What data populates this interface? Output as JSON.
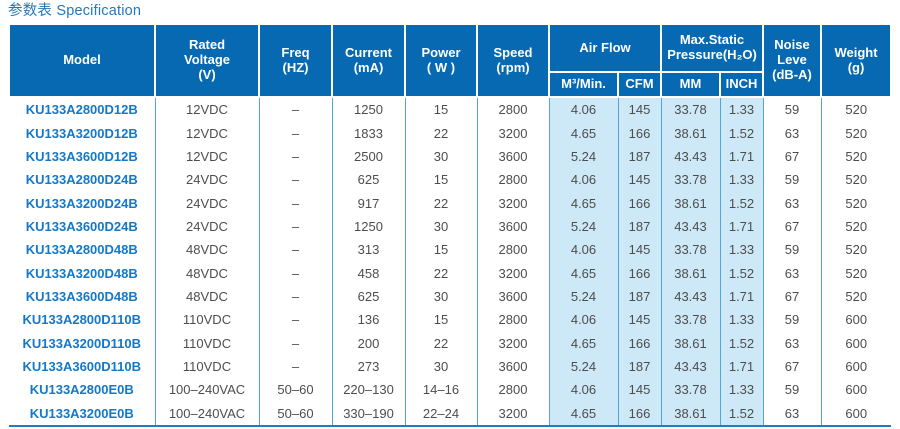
{
  "title": "参数表 Specification",
  "table": {
    "headers": {
      "model": "Model",
      "rated_voltage": "Rated\nVoltage\n(V)",
      "freq": "Freq\n(HZ)",
      "current": "Current\n(mA)",
      "power": "Power\n( W )",
      "speed": "Speed\n(rpm)",
      "air_flow": "Air Flow",
      "max_static_pressure": "Max.Static\nPressure(H₂O)",
      "noise": "Noise\nLeve\n(dB-A)",
      "weight": "Weight\n(g)",
      "m3_min": "M³/Min.",
      "cfm": "CFM",
      "mm": "MM",
      "inch": "INCH"
    },
    "column_keys": [
      "model",
      "rated-voltage",
      "freq",
      "current",
      "power",
      "speed",
      "airflow-m3min",
      "airflow-cfm",
      "pressure-mm",
      "pressure-inch",
      "noise",
      "weight"
    ],
    "highlight_columns": [
      6,
      7,
      8,
      9
    ],
    "colors": {
      "header_bg": "#0769b1",
      "highlight_bg": "#cde8f7",
      "grid_line": "#51a5d7",
      "bottom_rule": "#1f7dc2",
      "model_text": "#1478c8",
      "body_text": "#4d4d4d",
      "title_text": "#2377bb"
    },
    "rows": [
      [
        "KU133A2800D12B",
        "12VDC",
        "–",
        "1250",
        "15",
        "2800",
        "4.06",
        "145",
        "33.78",
        "1.33",
        "59",
        "520"
      ],
      [
        "KU133A3200D12B",
        "12VDC",
        "–",
        "1833",
        "22",
        "3200",
        "4.65",
        "166",
        "38.61",
        "1.52",
        "63",
        "520"
      ],
      [
        "KU133A3600D12B",
        "12VDC",
        "–",
        "2500",
        "30",
        "3600",
        "5.24",
        "187",
        "43.43",
        "1.71",
        "67",
        "520"
      ],
      [
        "KU133A2800D24B",
        "24VDC",
        "–",
        "625",
        "15",
        "2800",
        "4.06",
        "145",
        "33.78",
        "1.33",
        "59",
        "520"
      ],
      [
        "KU133A3200D24B",
        "24VDC",
        "–",
        "917",
        "22",
        "3200",
        "4.65",
        "166",
        "38.61",
        "1.52",
        "63",
        "520"
      ],
      [
        "KU133A3600D24B",
        "24VDC",
        "–",
        "1250",
        "30",
        "3600",
        "5.24",
        "187",
        "43.43",
        "1.71",
        "67",
        "520"
      ],
      [
        "KU133A2800D48B",
        "48VDC",
        "–",
        "313",
        "15",
        "2800",
        "4.06",
        "145",
        "33.78",
        "1.33",
        "59",
        "520"
      ],
      [
        "KU133A3200D48B",
        "48VDC",
        "–",
        "458",
        "22",
        "3200",
        "4.65",
        "166",
        "38.61",
        "1.52",
        "63",
        "520"
      ],
      [
        "KU133A3600D48B",
        "48VDC",
        "–",
        "625",
        "30",
        "3600",
        "5.24",
        "187",
        "43.43",
        "1.71",
        "67",
        "520"
      ],
      [
        "KU133A2800D110B",
        "110VDC",
        "–",
        "136",
        "15",
        "2800",
        "4.06",
        "145",
        "33.78",
        "1.33",
        "59",
        "600"
      ],
      [
        "KU133A3200D110B",
        "110VDC",
        "–",
        "200",
        "22",
        "3200",
        "4.65",
        "166",
        "38.61",
        "1.52",
        "63",
        "600"
      ],
      [
        "KU133A3600D110B",
        "110VDC",
        "–",
        "273",
        "30",
        "3600",
        "5.24",
        "187",
        "43.43",
        "1.71",
        "67",
        "600"
      ],
      [
        "KU133A2800E0B",
        "100–240VAC",
        "50–60",
        "220–130",
        "14–16",
        "2800",
        "4.06",
        "145",
        "33.78",
        "1.33",
        "59",
        "600"
      ],
      [
        "KU133A3200E0B",
        "100–240VAC",
        "50–60",
        "330–190",
        "22–24",
        "3200",
        "4.65",
        "166",
        "38.61",
        "1.52",
        "63",
        "600"
      ]
    ]
  }
}
